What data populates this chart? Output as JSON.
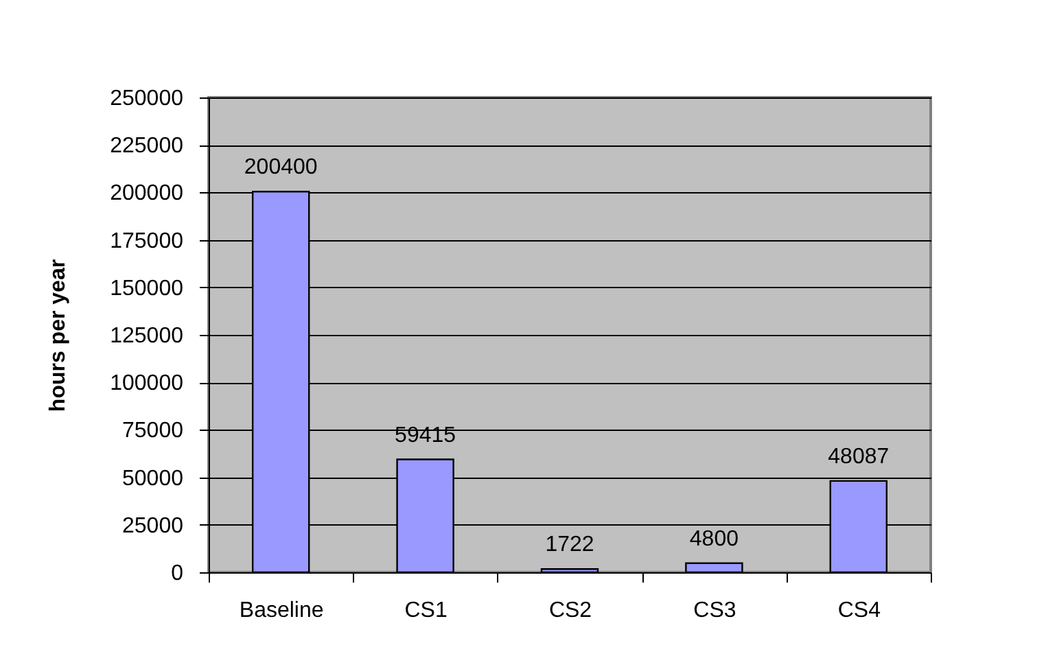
{
  "chart_data": {
    "type": "bar",
    "ylabel": "hours per year",
    "categories": [
      "Baseline",
      "CS1",
      "CS2",
      "CS3",
      "CS4"
    ],
    "values": [
      200400,
      59415,
      1722,
      4800,
      48087
    ],
    "color": "#9999ff",
    "ylim": [
      0,
      250000
    ],
    "yticks": [
      0,
      25000,
      50000,
      75000,
      100000,
      125000,
      150000,
      175000,
      200000,
      225000,
      250000
    ],
    "grid": "y",
    "data_labels": true
  }
}
